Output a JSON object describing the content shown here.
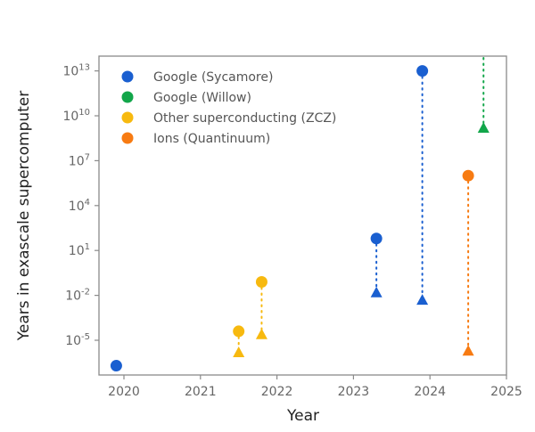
{
  "chart_data": {
    "type": "scatter",
    "title": "",
    "xlabel": "Year",
    "ylabel": "Years in exascale supercomputer",
    "xlim": [
      2019.7,
      2025
    ],
    "ylim_log10": [
      -7.25,
      14.0
    ],
    "y_scale": "log",
    "x_ticks": [
      {
        "value": 2020,
        "label": "2020"
      },
      {
        "value": 2021,
        "label": "2021"
      },
      {
        "value": 2022,
        "label": "2022"
      },
      {
        "value": 2023,
        "label": "2023"
      },
      {
        "value": 2024,
        "label": "2024"
      },
      {
        "value": 2025,
        "label": "2025"
      }
    ],
    "y_ticks": [
      {
        "exp": 13,
        "base": "10",
        "sup": "13"
      },
      {
        "exp": 10,
        "base": "10",
        "sup": "10"
      },
      {
        "exp": 7,
        "base": "10",
        "sup": "7"
      },
      {
        "exp": 4,
        "base": "10",
        "sup": "4"
      },
      {
        "exp": 1,
        "base": "10",
        "sup": "1"
      },
      {
        "exp": -2,
        "base": "10",
        "sup": "-2"
      },
      {
        "exp": -5,
        "base": "10",
        "sup": "-5"
      }
    ],
    "grid": false,
    "legend_position": "top-left",
    "series": [
      {
        "name": "Google (Sycamore)",
        "color": "#1a5fd0"
      },
      {
        "name": "Google (Willow)",
        "color": "#12a64a"
      },
      {
        "name": "Other superconducting (ZCZ)",
        "color": "#f7b90f"
      },
      {
        "name": "Ions (Quantinuum)",
        "color": "#f77b12"
      }
    ],
    "points": [
      {
        "series": 0,
        "x": 2019.9,
        "circle_log10": -6.7,
        "triangle_log10": null
      },
      {
        "series": 2,
        "x": 2021.5,
        "circle_log10": -4.4,
        "triangle_log10": -5.8
      },
      {
        "series": 2,
        "x": 2021.8,
        "circle_log10": -1.1,
        "triangle_log10": -4.6
      },
      {
        "series": 0,
        "x": 2023.3,
        "circle_log10": 1.8,
        "triangle_log10": -1.8
      },
      {
        "series": 0,
        "x": 2023.9,
        "circle_log10": 13.0,
        "triangle_log10": -2.3
      },
      {
        "series": 3,
        "x": 2024.5,
        "circle_log10": 6.0,
        "triangle_log10": -5.7
      },
      {
        "series": 1,
        "x": 2024.7,
        "circle_log10": null,
        "circle_above_axis": true,
        "triangle_log10": 9.2
      }
    ],
    "marker_legend": {
      "circle": "circle marker",
      "triangle": "triangle marker"
    }
  }
}
